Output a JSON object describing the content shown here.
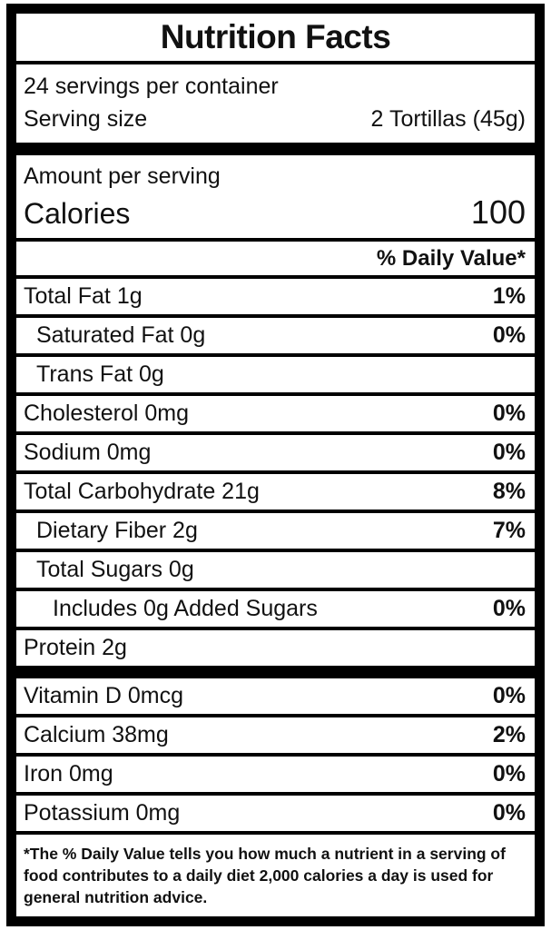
{
  "label": {
    "title": "Nutrition Facts",
    "servings_per_container": "24 servings per container",
    "serving_size_label": "Serving size",
    "serving_size_value": "2 Tortillas (45g)",
    "amount_per_serving": "Amount per serving",
    "calories_label": "Calories",
    "calories_value": "100",
    "daily_value_header": "% Daily Value*",
    "footnote": "*The % Daily Value tells you how much a nutrient in a serving of food contributes to a daily diet 2,000 calories a day is used for general nutrition advice."
  },
  "nutrients": [
    {
      "name": "Total Fat 1g",
      "dv": "1%",
      "indent": 0
    },
    {
      "name": "Saturated Fat 0g",
      "dv": "0%",
      "indent": 1
    },
    {
      "name": "Trans Fat 0g",
      "dv": "",
      "indent": 1
    },
    {
      "name": "Cholesterol 0mg",
      "dv": "0%",
      "indent": 0
    },
    {
      "name": "Sodium 0mg",
      "dv": "0%",
      "indent": 0
    },
    {
      "name": "Total Carbohydrate 21g",
      "dv": "8%",
      "indent": 0
    },
    {
      "name": "Dietary Fiber 2g",
      "dv": "7%",
      "indent": 1
    },
    {
      "name": "Total Sugars 0g",
      "dv": "",
      "indent": 1
    },
    {
      "name": "Includes 0g Added Sugars",
      "dv": "0%",
      "indent": 2
    },
    {
      "name": "Protein 2g",
      "dv": "",
      "indent": 0
    }
  ],
  "vitamins": [
    {
      "name": "Vitamin D 0mcg",
      "dv": "0%"
    },
    {
      "name": "Calcium 38mg",
      "dv": "2%"
    },
    {
      "name": "Iron 0mg",
      "dv": "0%"
    },
    {
      "name": "Potassium 0mg",
      "dv": "0%"
    }
  ],
  "colors": {
    "frame": "#000000",
    "background": "#ffffff",
    "text": "#111111"
  }
}
